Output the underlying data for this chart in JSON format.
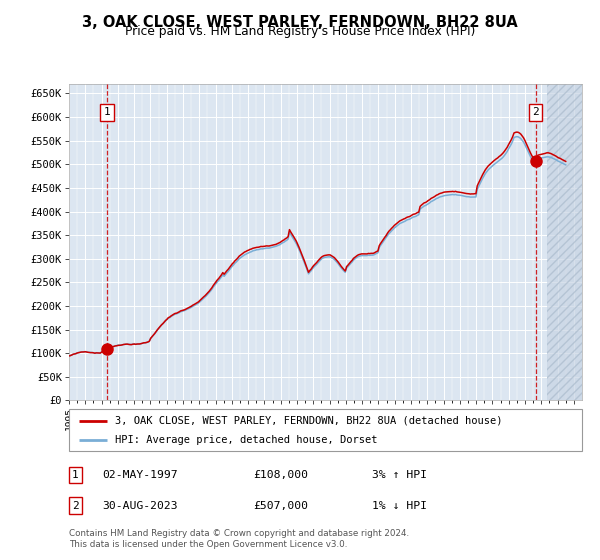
{
  "title": "3, OAK CLOSE, WEST PARLEY, FERNDOWN, BH22 8UA",
  "subtitle": "Price paid vs. HM Land Registry's House Price Index (HPI)",
  "ylim": [
    0,
    670000
  ],
  "xlim_start": 1995.0,
  "xlim_end": 2026.5,
  "yticks": [
    0,
    50000,
    100000,
    150000,
    200000,
    250000,
    300000,
    350000,
    400000,
    450000,
    500000,
    550000,
    600000,
    650000
  ],
  "ytick_labels": [
    "£0",
    "£50K",
    "£100K",
    "£150K",
    "£200K",
    "£250K",
    "£300K",
    "£350K",
    "£400K",
    "£450K",
    "£500K",
    "£550K",
    "£600K",
    "£650K"
  ],
  "xticks": [
    1995,
    1996,
    1997,
    1998,
    1999,
    2000,
    2001,
    2002,
    2003,
    2004,
    2005,
    2006,
    2007,
    2008,
    2009,
    2010,
    2011,
    2012,
    2013,
    2014,
    2015,
    2016,
    2017,
    2018,
    2019,
    2020,
    2021,
    2022,
    2023,
    2024,
    2025,
    2026
  ],
  "plot_bg_color": "#dce6f1",
  "hatch_start": 2024.33,
  "marker1_x": 1997.34,
  "marker1_y": 108000,
  "marker2_x": 2023.66,
  "marker2_y": 507000,
  "vline1_x": 1997.34,
  "vline2_x": 2023.66,
  "legend_line1": "3, OAK CLOSE, WEST PARLEY, FERNDOWN, BH22 8UA (detached house)",
  "legend_line2": "HPI: Average price, detached house, Dorset",
  "ann1_date": "02-MAY-1997",
  "ann1_price": "£108,000",
  "ann1_hpi": "3% ↑ HPI",
  "ann2_date": "30-AUG-2023",
  "ann2_price": "£507,000",
  "ann2_hpi": "1% ↓ HPI",
  "footer": "Contains HM Land Registry data © Crown copyright and database right 2024.\nThis data is licensed under the Open Government Licence v3.0.",
  "line_color_red": "#cc0000",
  "line_color_blue": "#7aaed6",
  "grid_color": "#ffffff"
}
